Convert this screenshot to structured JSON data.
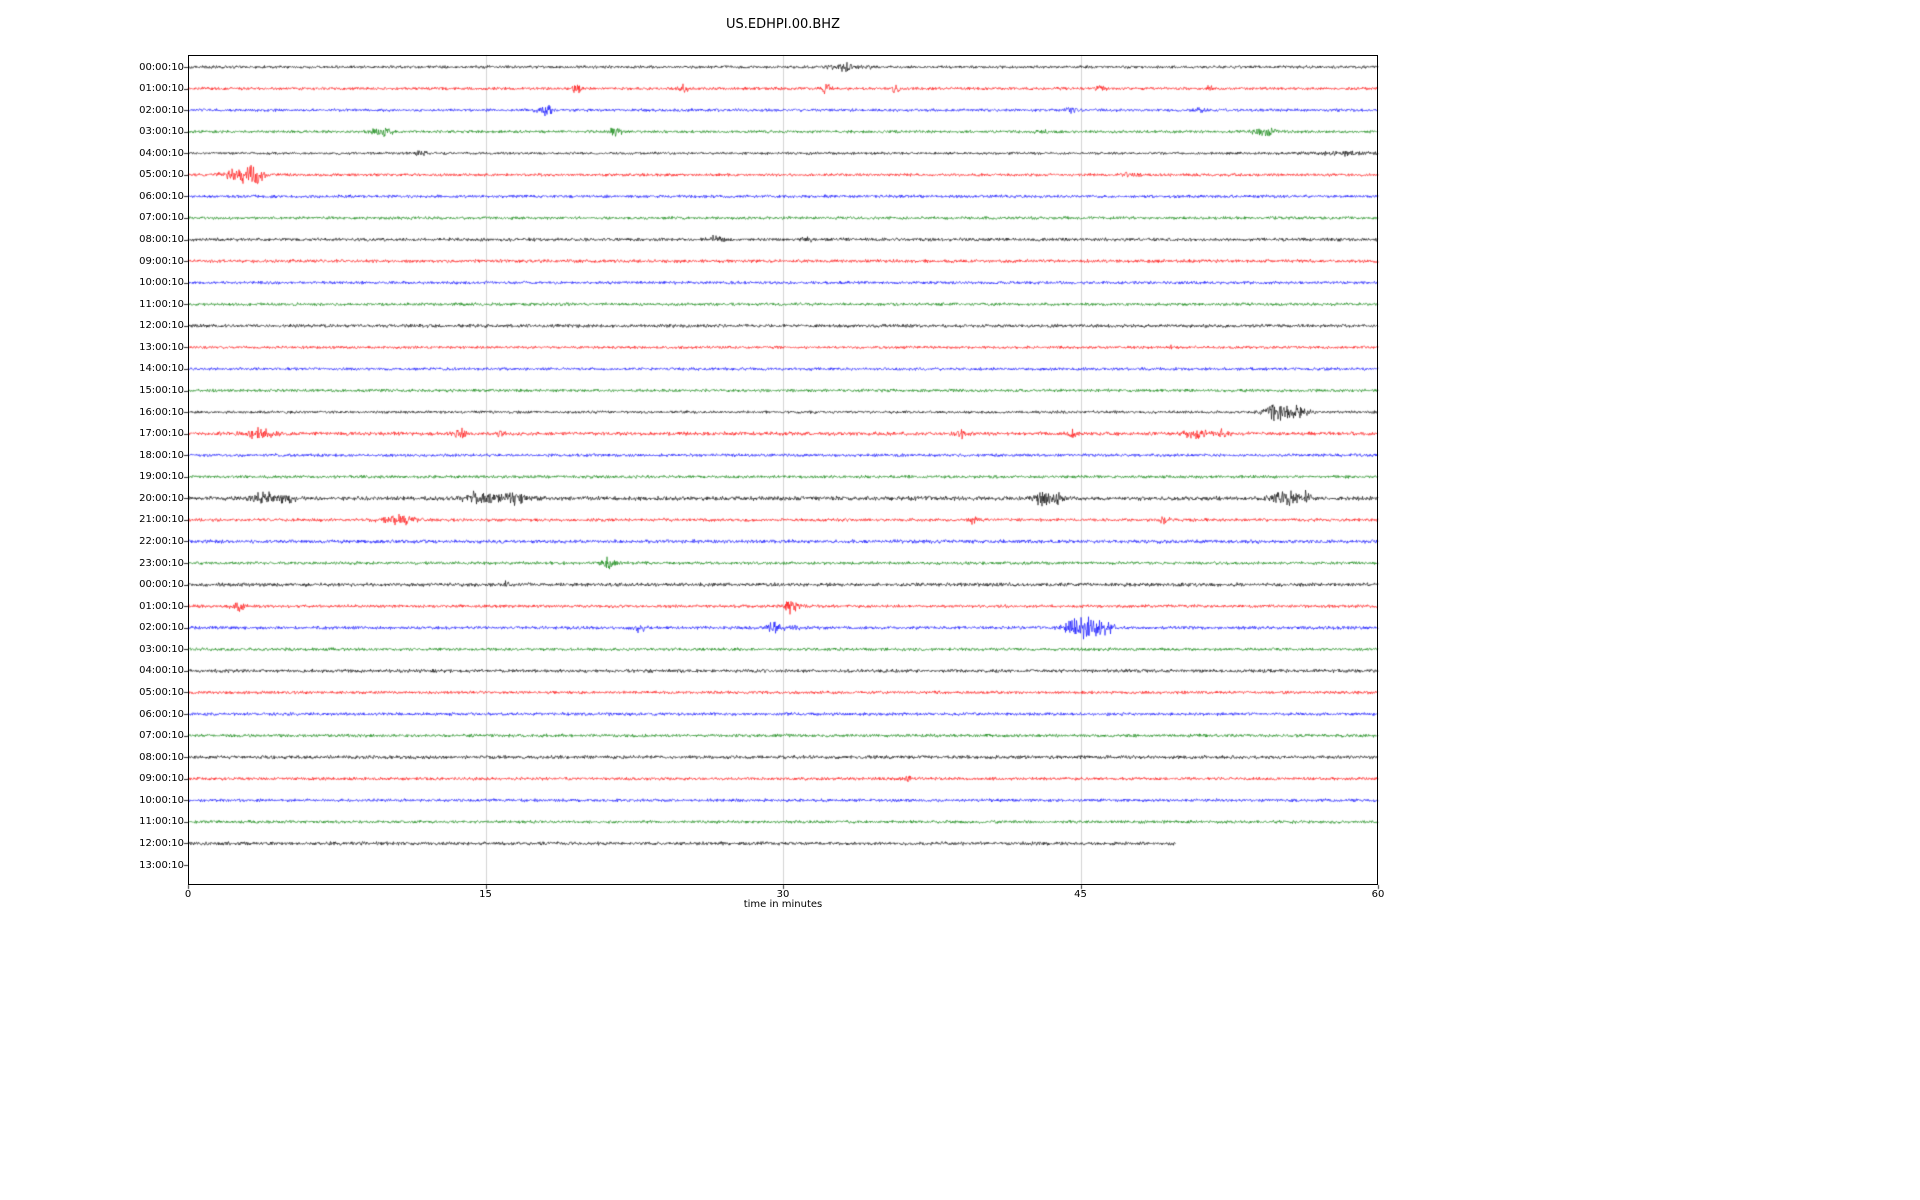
{
  "chart_data": {
    "type": "line",
    "subtype": "seismogram_dayplot",
    "title": "US.EDHPI.00.BHZ",
    "xlabel": "time in minutes",
    "x_ticks": [
      0,
      15,
      30,
      45,
      60
    ],
    "x_range": [
      0,
      60
    ],
    "grid_x": [
      15,
      30,
      45
    ],
    "grid_color": "#c8c8c8",
    "trace_color_cycle": [
      "#000000",
      "#ff0000",
      "#0000ff",
      "#008000"
    ],
    "rows": [
      {
        "label": "00:00:10",
        "color": "#000000",
        "noise": 1.0,
        "end": 60,
        "events": [
          {
            "t": 33.0,
            "d": 0.8,
            "a": 2.5
          },
          {
            "t": 34.2,
            "d": 0.4,
            "a": 1.5
          }
        ]
      },
      {
        "label": "01:00:10",
        "color": "#ff0000",
        "noise": 1.0,
        "end": 60,
        "events": [
          {
            "t": 19.6,
            "d": 0.25,
            "a": 4.0
          },
          {
            "t": 25.0,
            "d": 0.3,
            "a": 2.5
          },
          {
            "t": 32.2,
            "d": 0.35,
            "a": 3.5
          },
          {
            "t": 35.7,
            "d": 0.3,
            "a": 2.5
          },
          {
            "t": 46.0,
            "d": 0.3,
            "a": 2.5
          },
          {
            "t": 51.5,
            "d": 0.2,
            "a": 1.5
          }
        ]
      },
      {
        "label": "02:00:10",
        "color": "#0000ff",
        "noise": 1.0,
        "end": 60,
        "events": [
          {
            "t": 18.0,
            "d": 0.5,
            "a": 4.0
          },
          {
            "t": 44.6,
            "d": 0.4,
            "a": 2.0
          },
          {
            "t": 51.0,
            "d": 0.3,
            "a": 1.8
          }
        ]
      },
      {
        "label": "03:00:10",
        "color": "#008000",
        "noise": 1.0,
        "end": 60,
        "events": [
          {
            "t": 9.8,
            "d": 0.7,
            "a": 2.5
          },
          {
            "t": 21.6,
            "d": 0.4,
            "a": 3.5
          },
          {
            "t": 43.0,
            "d": 0.4,
            "a": 1.6
          },
          {
            "t": 54.3,
            "d": 0.9,
            "a": 2.2
          }
        ]
      },
      {
        "label": "04:00:10",
        "color": "#000000",
        "noise": 0.9,
        "end": 60,
        "events": [
          {
            "t": 11.7,
            "d": 0.4,
            "a": 2.2
          },
          {
            "t": 58.0,
            "d": 2.5,
            "a": 1.2
          }
        ]
      },
      {
        "label": "05:00:10",
        "color": "#ff0000",
        "noise": 1.0,
        "end": 60,
        "events": [
          {
            "t": 2.7,
            "d": 1.3,
            "a": 4.5
          },
          {
            "t": 3.4,
            "d": 0.5,
            "a": 5.0
          },
          {
            "t": 47.5,
            "d": 0.6,
            "a": 1.2
          }
        ]
      },
      {
        "label": "06:00:10",
        "color": "#0000ff",
        "noise": 1.05,
        "end": 60,
        "events": []
      },
      {
        "label": "07:00:10",
        "color": "#008000",
        "noise": 1.0,
        "end": 60,
        "events": []
      },
      {
        "label": "08:00:10",
        "color": "#000000",
        "noise": 1.15,
        "end": 60,
        "events": [
          {
            "t": 26.5,
            "d": 0.6,
            "a": 1.8
          },
          {
            "t": 31.2,
            "d": 0.4,
            "a": 1.4
          }
        ]
      },
      {
        "label": "09:00:10",
        "color": "#ff0000",
        "noise": 1.15,
        "end": 60,
        "events": []
      },
      {
        "label": "10:00:10",
        "color": "#0000ff",
        "noise": 1.05,
        "end": 60,
        "events": []
      },
      {
        "label": "11:00:10",
        "color": "#008000",
        "noise": 1.05,
        "end": 60,
        "events": []
      },
      {
        "label": "12:00:10",
        "color": "#000000",
        "noise": 1.15,
        "end": 60,
        "events": []
      },
      {
        "label": "13:00:10",
        "color": "#ff0000",
        "noise": 0.95,
        "end": 60,
        "events": [
          {
            "t": 49.5,
            "d": 0.15,
            "a": 1.8
          }
        ]
      },
      {
        "label": "14:00:10",
        "color": "#0000ff",
        "noise": 1.0,
        "end": 60,
        "events": []
      },
      {
        "label": "15:00:10",
        "color": "#008000",
        "noise": 1.05,
        "end": 60,
        "events": []
      },
      {
        "label": "16:00:10",
        "color": "#000000",
        "noise": 0.95,
        "end": 60,
        "events": [
          {
            "t": 54.9,
            "d": 1.1,
            "a": 5.5
          },
          {
            "t": 56.0,
            "d": 0.7,
            "a": 3.5
          }
        ]
      },
      {
        "label": "17:00:10",
        "color": "#ff0000",
        "noise": 1.25,
        "end": 60,
        "events": [
          {
            "t": 3.6,
            "d": 1.1,
            "a": 2.2
          },
          {
            "t": 13.7,
            "d": 0.35,
            "a": 2.8
          },
          {
            "t": 15.8,
            "d": 0.25,
            "a": 3.2
          },
          {
            "t": 39.0,
            "d": 0.35,
            "a": 2.2
          },
          {
            "t": 44.6,
            "d": 0.3,
            "a": 1.8
          },
          {
            "t": 50.8,
            "d": 0.8,
            "a": 2.2
          },
          {
            "t": 52.2,
            "d": 0.4,
            "a": 2.0
          }
        ]
      },
      {
        "label": "18:00:10",
        "color": "#0000ff",
        "noise": 1.05,
        "end": 60,
        "events": []
      },
      {
        "label": "19:00:10",
        "color": "#008000",
        "noise": 1.05,
        "end": 60,
        "events": []
      },
      {
        "label": "20:00:10",
        "color": "#000000",
        "noise": 1.45,
        "end": 60,
        "events": [
          {
            "t": 3.8,
            "d": 0.9,
            "a": 2.2
          },
          {
            "t": 5.0,
            "d": 0.5,
            "a": 2.2
          },
          {
            "t": 14.8,
            "d": 1.2,
            "a": 2.8
          },
          {
            "t": 16.5,
            "d": 0.7,
            "a": 2.8
          },
          {
            "t": 43.2,
            "d": 0.7,
            "a": 3.2
          },
          {
            "t": 44.0,
            "d": 0.35,
            "a": 2.2
          },
          {
            "t": 55.4,
            "d": 1.1,
            "a": 2.6
          },
          {
            "t": 56.3,
            "d": 0.5,
            "a": 2.2
          }
        ]
      },
      {
        "label": "21:00:10",
        "color": "#ff0000",
        "noise": 1.1,
        "end": 60,
        "events": [
          {
            "t": 10.6,
            "d": 1.1,
            "a": 2.6
          },
          {
            "t": 39.6,
            "d": 0.25,
            "a": 2.8
          },
          {
            "t": 49.2,
            "d": 0.35,
            "a": 2.2
          }
        ]
      },
      {
        "label": "22:00:10",
        "color": "#0000ff",
        "noise": 1.25,
        "end": 60,
        "events": []
      },
      {
        "label": "23:00:10",
        "color": "#008000",
        "noise": 1.05,
        "end": 60,
        "events": [
          {
            "t": 21.2,
            "d": 0.5,
            "a": 3.0
          }
        ]
      },
      {
        "label": "00:00:10",
        "color": "#000000",
        "noise": 1.25,
        "end": 60,
        "events": [
          {
            "t": 16.0,
            "d": 0.25,
            "a": 2.8
          }
        ]
      },
      {
        "label": "01:00:10",
        "color": "#ff0000",
        "noise": 1.05,
        "end": 60,
        "events": [
          {
            "t": 2.5,
            "d": 0.45,
            "a": 3.0
          },
          {
            "t": 30.4,
            "d": 0.5,
            "a": 3.8
          }
        ]
      },
      {
        "label": "02:00:10",
        "color": "#0000ff",
        "noise": 1.1,
        "end": 60,
        "events": [
          {
            "t": 22.8,
            "d": 0.45,
            "a": 2.6
          },
          {
            "t": 29.6,
            "d": 0.6,
            "a": 2.8
          },
          {
            "t": 30.7,
            "d": 0.35,
            "a": 2.2
          },
          {
            "t": 45.0,
            "d": 1.1,
            "a": 6.5
          },
          {
            "t": 46.2,
            "d": 0.6,
            "a": 4.5
          }
        ]
      },
      {
        "label": "03:00:10",
        "color": "#008000",
        "noise": 1.05,
        "end": 60,
        "events": []
      },
      {
        "label": "04:00:10",
        "color": "#000000",
        "noise": 1.2,
        "end": 60,
        "events": []
      },
      {
        "label": "05:00:10",
        "color": "#ff0000",
        "noise": 1.05,
        "end": 60,
        "events": []
      },
      {
        "label": "06:00:10",
        "color": "#0000ff",
        "noise": 1.05,
        "end": 60,
        "events": []
      },
      {
        "label": "07:00:10",
        "color": "#008000",
        "noise": 1.1,
        "end": 60,
        "events": []
      },
      {
        "label": "08:00:10",
        "color": "#000000",
        "noise": 1.2,
        "end": 60,
        "events": []
      },
      {
        "label": "09:00:10",
        "color": "#ff0000",
        "noise": 1.05,
        "end": 60,
        "events": [
          {
            "t": 36.3,
            "d": 0.15,
            "a": 2.8
          }
        ]
      },
      {
        "label": "10:00:10",
        "color": "#0000ff",
        "noise": 1.05,
        "end": 60,
        "events": []
      },
      {
        "label": "11:00:10",
        "color": "#008000",
        "noise": 1.05,
        "end": 60,
        "events": []
      },
      {
        "label": "12:00:10",
        "color": "#000000",
        "noise": 1.2,
        "end": 49.8,
        "events": []
      },
      {
        "label": "13:00:10",
        "color": "#ff0000",
        "noise": 1.0,
        "end": 0,
        "events": []
      }
    ]
  }
}
